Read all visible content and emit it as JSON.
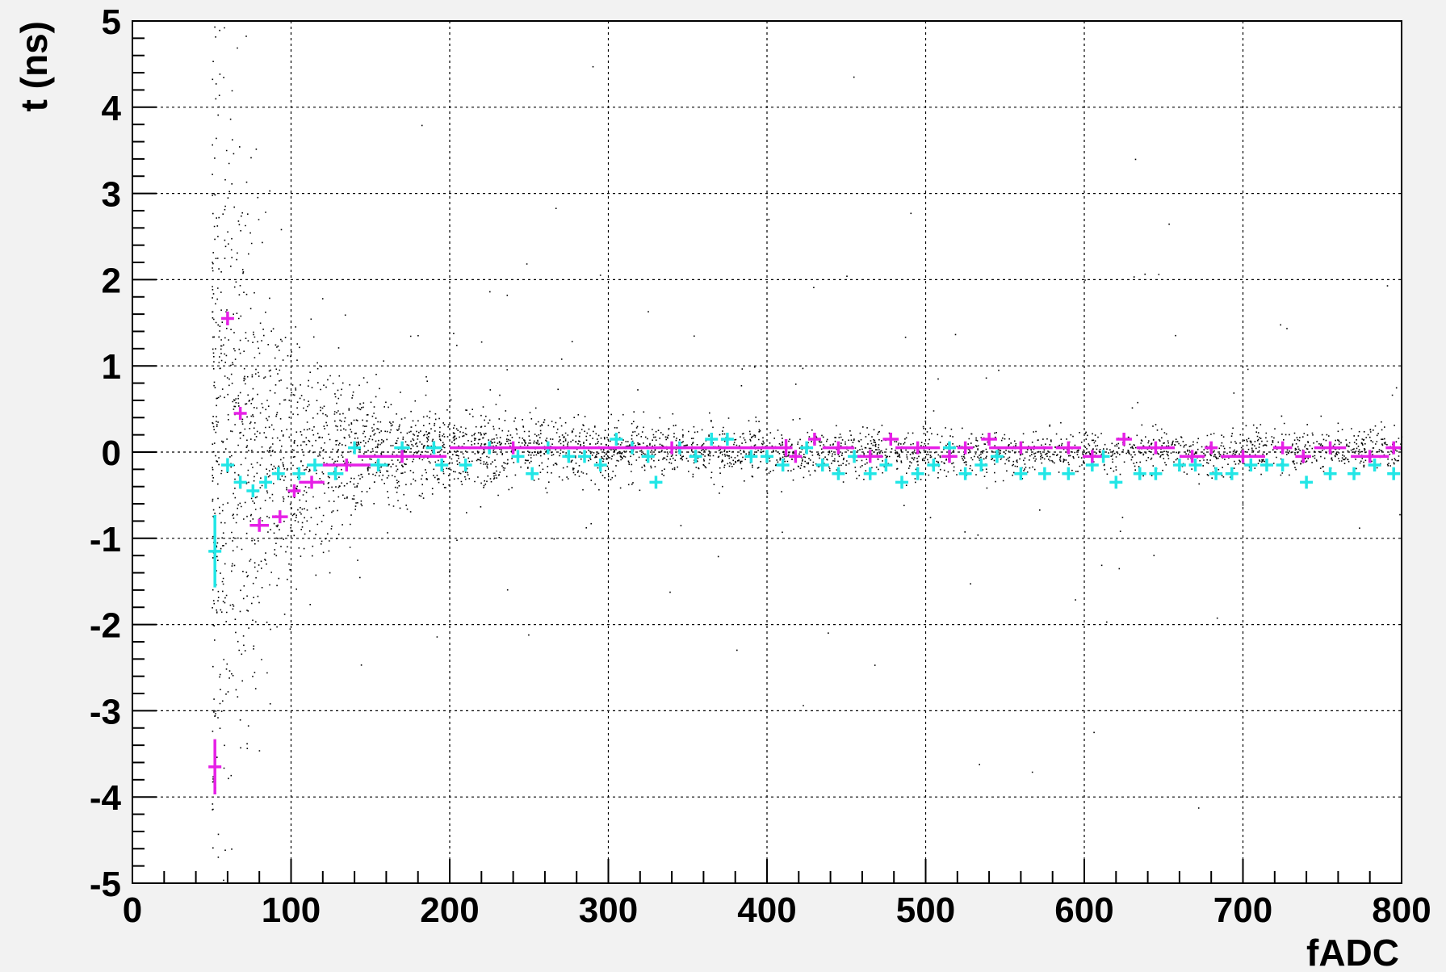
{
  "chart_data": {
    "type": "scatter",
    "title": "",
    "xlabel": "fADC",
    "ylabel": "t (ns)",
    "xlim": [
      0,
      800
    ],
    "ylim": [
      -5,
      5
    ],
    "grid": true,
    "legend": "none",
    "x_ticks": [
      "0",
      "100",
      "200",
      "300",
      "400",
      "500",
      "600",
      "700",
      "800"
    ],
    "y_ticks": [
      "-5",
      "-4",
      "-3",
      "-2",
      "-1",
      "0",
      "1",
      "2",
      "3",
      "4",
      "5"
    ],
    "colors": {
      "scatter": "#000000",
      "cyan": "#22e6e6",
      "magenta": "#e620e6",
      "background": "#ffffff",
      "frame": "#f2f2f2"
    },
    "series": [
      {
        "color": "cyan",
        "points": [
          {
            "x": 52,
            "y": -1.15,
            "xerr": 1,
            "yerr": 0.42
          },
          {
            "x": 60,
            "y": -0.15,
            "xerr": 3,
            "yerr": 0.08
          },
          {
            "x": 68,
            "y": -0.35,
            "xerr": 3,
            "yerr": 0.05
          },
          {
            "x": 76,
            "y": -0.45,
            "xerr": 4,
            "yerr": 0.04
          },
          {
            "x": 84,
            "y": -0.35,
            "xerr": 4,
            "yerr": 0.04
          },
          {
            "x": 92,
            "y": -0.25,
            "xerr": 4,
            "yerr": 0.03
          },
          {
            "x": 105,
            "y": -0.25,
            "xerr": 4,
            "yerr": 0.03
          },
          {
            "x": 115,
            "y": -0.15,
            "xerr": 5,
            "yerr": 0.03
          },
          {
            "x": 128,
            "y": -0.25,
            "xerr": 5,
            "yerr": 0.03
          },
          {
            "x": 140,
            "y": 0.05,
            "xerr": 4,
            "yerr": 0.03
          },
          {
            "x": 155,
            "y": -0.15,
            "xerr": 6,
            "yerr": 0.03
          },
          {
            "x": 170,
            "y": 0.05,
            "xerr": 5,
            "yerr": 0.03
          },
          {
            "x": 190,
            "y": 0.05,
            "xerr": 5,
            "yerr": 0.03
          },
          {
            "x": 195,
            "y": -0.15,
            "xerr": 4,
            "yerr": 0.03
          },
          {
            "x": 210,
            "y": -0.15,
            "xerr": 4,
            "yerr": 0.03
          },
          {
            "x": 225,
            "y": 0.05,
            "xerr": 4,
            "yerr": 0.03
          },
          {
            "x": 243,
            "y": -0.05,
            "xerr": 4,
            "yerr": 0.03
          },
          {
            "x": 252,
            "y": -0.25,
            "xerr": 4,
            "yerr": 0.03
          },
          {
            "x": 262,
            "y": 0.05,
            "xerr": 4,
            "yerr": 0.03
          },
          {
            "x": 275,
            "y": -0.05,
            "xerr": 4,
            "yerr": 0.03
          },
          {
            "x": 285,
            "y": -0.05,
            "xerr": 4,
            "yerr": 0.03
          },
          {
            "x": 295,
            "y": -0.15,
            "xerr": 4,
            "yerr": 0.03
          },
          {
            "x": 305,
            "y": 0.15,
            "xerr": 4,
            "yerr": 0.03
          },
          {
            "x": 315,
            "y": 0.05,
            "xerr": 4,
            "yerr": 0.03
          },
          {
            "x": 325,
            "y": -0.05,
            "xerr": 4,
            "yerr": 0.03
          },
          {
            "x": 330,
            "y": -0.35,
            "xerr": 4,
            "yerr": 0.03
          },
          {
            "x": 345,
            "y": 0.05,
            "xerr": 4,
            "yerr": 0.03
          },
          {
            "x": 355,
            "y": -0.05,
            "xerr": 4,
            "yerr": 0.03
          },
          {
            "x": 365,
            "y": 0.15,
            "xerr": 4,
            "yerr": 0.03
          },
          {
            "x": 375,
            "y": 0.15,
            "xerr": 4,
            "yerr": 0.03
          },
          {
            "x": 390,
            "y": -0.05,
            "xerr": 4,
            "yerr": 0.03
          },
          {
            "x": 400,
            "y": -0.05,
            "xerr": 4,
            "yerr": 0.03
          },
          {
            "x": 410,
            "y": -0.15,
            "xerr": 4,
            "yerr": 0.03
          },
          {
            "x": 425,
            "y": 0.05,
            "xerr": 4,
            "yerr": 0.03
          },
          {
            "x": 435,
            "y": -0.15,
            "xerr": 4,
            "yerr": 0.03
          },
          {
            "x": 445,
            "y": -0.25,
            "xerr": 4,
            "yerr": 0.03
          },
          {
            "x": 455,
            "y": -0.05,
            "xerr": 4,
            "yerr": 0.03
          },
          {
            "x": 465,
            "y": -0.25,
            "xerr": 4,
            "yerr": 0.03
          },
          {
            "x": 475,
            "y": -0.15,
            "xerr": 4,
            "yerr": 0.03
          },
          {
            "x": 485,
            "y": -0.35,
            "xerr": 4,
            "yerr": 0.03
          },
          {
            "x": 495,
            "y": -0.25,
            "xerr": 4,
            "yerr": 0.03
          },
          {
            "x": 505,
            "y": -0.15,
            "xerr": 4,
            "yerr": 0.03
          },
          {
            "x": 515,
            "y": 0.05,
            "xerr": 4,
            "yerr": 0.03
          },
          {
            "x": 525,
            "y": -0.25,
            "xerr": 4,
            "yerr": 0.03
          },
          {
            "x": 535,
            "y": -0.15,
            "xerr": 4,
            "yerr": 0.03
          },
          {
            "x": 545,
            "y": -0.05,
            "xerr": 4,
            "yerr": 0.03
          },
          {
            "x": 560,
            "y": -0.25,
            "xerr": 4,
            "yerr": 0.03
          },
          {
            "x": 575,
            "y": -0.25,
            "xerr": 4,
            "yerr": 0.03
          },
          {
            "x": 590,
            "y": -0.25,
            "xerr": 4,
            "yerr": 0.03
          },
          {
            "x": 605,
            "y": -0.15,
            "xerr": 4,
            "yerr": 0.03
          },
          {
            "x": 612,
            "y": -0.05,
            "xerr": 4,
            "yerr": 0.03
          },
          {
            "x": 620,
            "y": -0.35,
            "xerr": 4,
            "yerr": 0.03
          },
          {
            "x": 635,
            "y": -0.25,
            "xerr": 4,
            "yerr": 0.03
          },
          {
            "x": 645,
            "y": -0.25,
            "xerr": 4,
            "yerr": 0.03
          },
          {
            "x": 660,
            "y": -0.15,
            "xerr": 4,
            "yerr": 0.03
          },
          {
            "x": 670,
            "y": -0.15,
            "xerr": 4,
            "yerr": 0.03
          },
          {
            "x": 683,
            "y": -0.25,
            "xerr": 4,
            "yerr": 0.03
          },
          {
            "x": 693,
            "y": -0.25,
            "xerr": 4,
            "yerr": 0.03
          },
          {
            "x": 705,
            "y": -0.15,
            "xerr": 4,
            "yerr": 0.03
          },
          {
            "x": 715,
            "y": -0.15,
            "xerr": 4,
            "yerr": 0.03
          },
          {
            "x": 725,
            "y": -0.15,
            "xerr": 4,
            "yerr": 0.03
          },
          {
            "x": 740,
            "y": -0.35,
            "xerr": 4,
            "yerr": 0.03
          },
          {
            "x": 755,
            "y": -0.25,
            "xerr": 4,
            "yerr": 0.03
          },
          {
            "x": 770,
            "y": -0.25,
            "xerr": 4,
            "yerr": 0.03
          },
          {
            "x": 783,
            "y": -0.15,
            "xerr": 4,
            "yerr": 0.03
          },
          {
            "x": 795,
            "y": -0.25,
            "xerr": 4,
            "yerr": 0.03
          }
        ]
      },
      {
        "color": "magenta",
        "points": [
          {
            "x": 52,
            "y": -3.65,
            "xerr": 1,
            "yerr": 0.32
          },
          {
            "x": 60,
            "y": 1.55,
            "xerr": 2,
            "yerr": 0.08
          },
          {
            "x": 68,
            "y": 0.45,
            "xerr": 2,
            "yerr": 0.05
          },
          {
            "x": 80,
            "y": -0.85,
            "xerr": 6,
            "yerr": 0.02
          },
          {
            "x": 93,
            "y": -0.75,
            "xerr": 5,
            "yerr": 0.02
          },
          {
            "x": 102,
            "y": -0.45,
            "xerr": 4,
            "yerr": 0.02
          },
          {
            "x": 113,
            "y": -0.35,
            "xerr": 8,
            "yerr": 0.02
          },
          {
            "x": 135,
            "y": -0.15,
            "xerr": 15,
            "yerr": 0.02
          },
          {
            "x": 170,
            "y": -0.05,
            "xerr": 28,
            "yerr": 0.02
          },
          {
            "x": 240,
            "y": 0.05,
            "xerr": 40,
            "yerr": 0.02
          },
          {
            "x": 340,
            "y": 0.05,
            "xerr": 70,
            "yerr": 0.02
          },
          {
            "x": 412,
            "y": 0.05,
            "xerr": 3,
            "yerr": 0.1
          },
          {
            "x": 418,
            "y": -0.05,
            "xerr": 4,
            "yerr": 0.02
          },
          {
            "x": 430,
            "y": 0.15,
            "xerr": 4,
            "yerr": 0.02
          },
          {
            "x": 445,
            "y": 0.05,
            "xerr": 10,
            "yerr": 0.02
          },
          {
            "x": 465,
            "y": -0.05,
            "xerr": 8,
            "yerr": 0.02
          },
          {
            "x": 478,
            "y": 0.15,
            "xerr": 5,
            "yerr": 0.02
          },
          {
            "x": 495,
            "y": 0.05,
            "xerr": 14,
            "yerr": 0.02
          },
          {
            "x": 515,
            "y": -0.05,
            "xerr": 5,
            "yerr": 0.02
          },
          {
            "x": 525,
            "y": 0.05,
            "xerr": 5,
            "yerr": 0.02
          },
          {
            "x": 540,
            "y": 0.15,
            "xerr": 5,
            "yerr": 0.02
          },
          {
            "x": 560,
            "y": 0.05,
            "xerr": 20,
            "yerr": 0.02
          },
          {
            "x": 590,
            "y": 0.05,
            "xerr": 8,
            "yerr": 0.02
          },
          {
            "x": 605,
            "y": -0.05,
            "xerr": 6,
            "yerr": 0.02
          },
          {
            "x": 625,
            "y": 0.15,
            "xerr": 5,
            "yerr": 0.02
          },
          {
            "x": 645,
            "y": 0.05,
            "xerr": 12,
            "yerr": 0.02
          },
          {
            "x": 668,
            "y": -0.05,
            "xerr": 8,
            "yerr": 0.02
          },
          {
            "x": 680,
            "y": 0.05,
            "xerr": 4,
            "yerr": 0.02
          },
          {
            "x": 700,
            "y": -0.05,
            "xerr": 14,
            "yerr": 0.02
          },
          {
            "x": 725,
            "y": 0.05,
            "xerr": 6,
            "yerr": 0.02
          },
          {
            "x": 738,
            "y": -0.05,
            "xerr": 5,
            "yerr": 0.02
          },
          {
            "x": 755,
            "y": 0.05,
            "xerr": 10,
            "yerr": 0.02
          },
          {
            "x": 780,
            "y": -0.05,
            "xerr": 12,
            "yerr": 0.02
          },
          {
            "x": 795,
            "y": 0.05,
            "xerr": 5,
            "yerr": 0.02
          }
        ]
      }
    ]
  }
}
